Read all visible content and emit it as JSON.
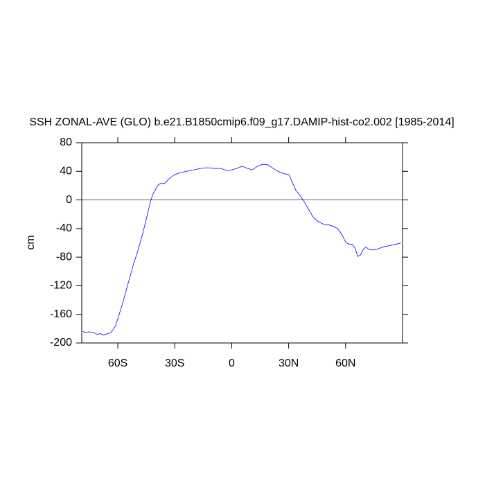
{
  "chart_data": {
    "type": "line",
    "title": "SSH ZONAL-AVE (GLO) b.e21.B1850cmip6.f09_g17.DAMIP-hist-co2.002 [1985-2014]",
    "ylabel": "cm",
    "x": [
      -78.4,
      -77.3,
      -75.5,
      -72.9,
      -71,
      -69.3,
      -67.4,
      -65.6,
      -63.8,
      -62.7,
      -61.2,
      -59.4,
      -57.2,
      -54.7,
      -52.1,
      -49.2,
      -46.7,
      -44.5,
      -42.7,
      -41.2,
      -39,
      -37.6,
      -35.4,
      -32.8,
      -30.3,
      -27.3,
      -23.7,
      -20,
      -16.4,
      -12.8,
      -9.1,
      -5.5,
      -2.6,
      0,
      2.6,
      5.5,
      8.4,
      10.9,
      13.5,
      16.4,
      19.3,
      21.9,
      24.4,
      27.3,
      30.3,
      31.7,
      33.9,
      36.1,
      38.3,
      40.5,
      42.7,
      44.8,
      47,
      49.2,
      51.4,
      53.6,
      55.8,
      58,
      60.2,
      62,
      63.4,
      64.9,
      66.4,
      67.8,
      69.3,
      70.7,
      72.2,
      74,
      76.6,
      79.5,
      82.8,
      86.4,
      89.3
    ],
    "series": [
      {
        "color": "#0000ff",
        "values": [
          -183.6,
          -185.5,
          -184.5,
          -185,
          -188,
          -187,
          -189,
          -187,
          -186,
          -182,
          -176,
          -161,
          -142,
          -118,
          -93,
          -69,
          -45,
          -21,
          -1,
          10,
          20,
          23,
          23,
          30,
          35,
          38,
          40,
          42,
          44,
          45,
          44,
          44,
          41,
          42,
          44,
          47,
          44,
          42,
          47,
          50,
          49,
          44,
          40,
          37,
          35,
          26,
          13,
          6,
          -3,
          -13,
          -23,
          -29,
          -32,
          -35,
          -35,
          -37,
          -40,
          -48,
          -60,
          -62,
          -62,
          -67,
          -79,
          -77,
          -69,
          -66,
          -69,
          -70,
          -69,
          -66,
          -64,
          -62,
          -60
        ]
      }
    ],
    "xlim": [
      -79,
      90
    ],
    "xticks": [
      {
        "value": -60,
        "label": "60S"
      },
      {
        "value": -30,
        "label": "30S"
      },
      0,
      {
        "value": 30,
        "label": "30N"
      },
      {
        "value": 60,
        "label": "60N"
      }
    ],
    "ylim": [
      -200,
      80
    ],
    "yticks": [
      -200,
      -160,
      -120,
      -80,
      -40,
      0,
      40,
      80
    ],
    "reference_line": 0
  }
}
